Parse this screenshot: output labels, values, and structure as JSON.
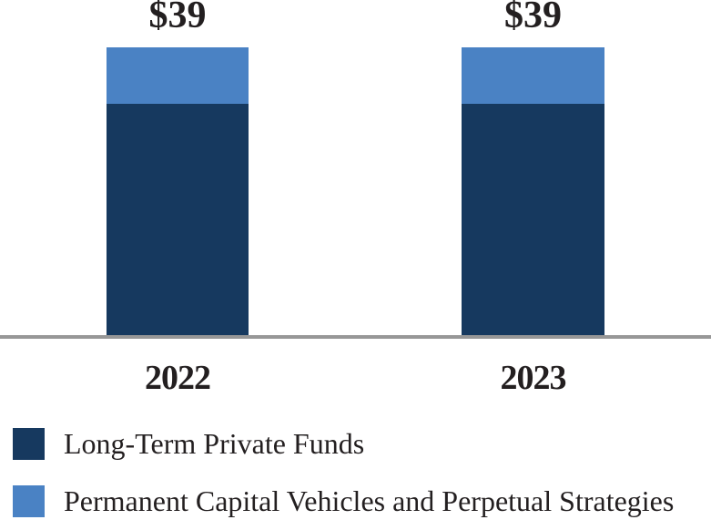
{
  "chart_data": {
    "type": "bar",
    "stacked": true,
    "title": "",
    "xlabel": "",
    "ylabel": "",
    "grid": false,
    "legend_position": "bottom-left",
    "categories": [
      "2022",
      "2023"
    ],
    "series": [
      {
        "name": "Long-Term Private Funds",
        "color": "#16395F",
        "values": [
          31.3,
          31.3
        ]
      },
      {
        "name": "Permanent Capital Vehicles and Perpetual Strategies",
        "color": "#4A82C4",
        "values": [
          7.7,
          7.7
        ]
      }
    ],
    "totals_labels": [
      "$39",
      "$39"
    ],
    "ylim": [
      0,
      39
    ]
  },
  "legend": {
    "items": [
      {
        "label": "Long-Term Private Funds",
        "color": "#16395F"
      },
      {
        "label": "Permanent Capital Vehicles and Perpetual Strategies",
        "color": "#4A82C4"
      }
    ]
  },
  "colors": {
    "axis_line": "#979797",
    "text": "#231F20",
    "background": "#FFFFFF"
  }
}
